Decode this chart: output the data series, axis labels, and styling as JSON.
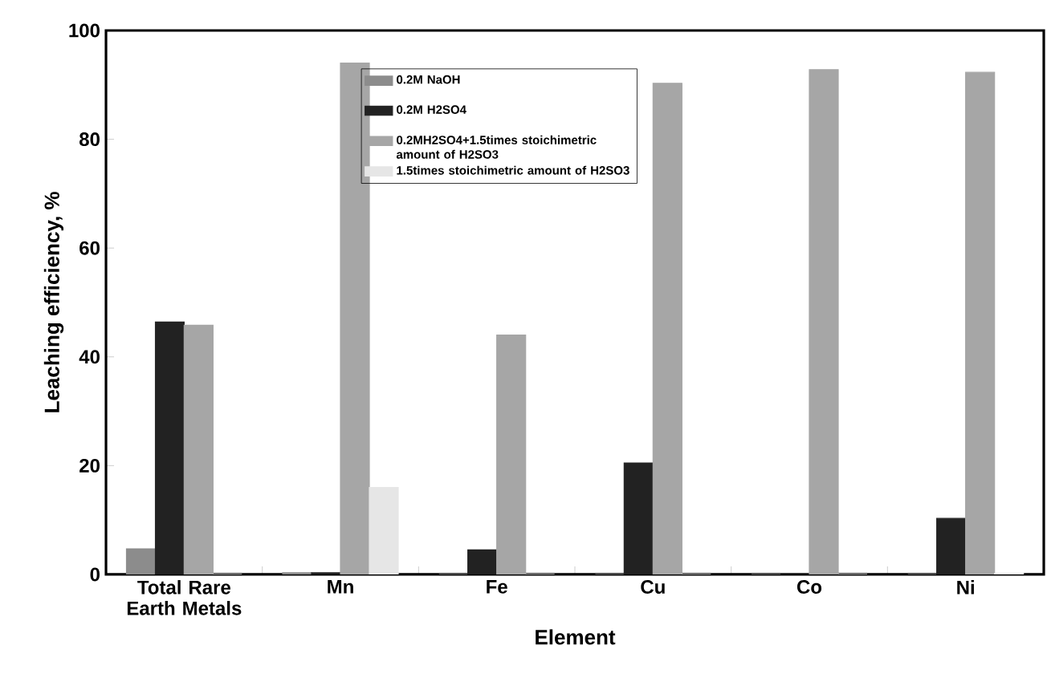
{
  "chart_data": {
    "type": "bar",
    "xlabel": "Element",
    "ylabel": "Leaching efficiency, %",
    "categories": [
      "Total Rare Earth Metals",
      "Mn",
      "Fe",
      "Cu",
      "Co",
      "Ni"
    ],
    "series": [
      {
        "name": "0.2M NaOH",
        "color": "#8c8c8c",
        "values": [
          4.7,
          0.3,
          0,
          0,
          0,
          0
        ]
      },
      {
        "name": "0.2M H2SO4",
        "color": "#222222",
        "values": [
          46.4,
          0.3,
          4.5,
          20.5,
          0,
          10.3
        ]
      },
      {
        "name": "0.2MH2SO4+1.5times stoichimetric amount of H2SO3",
        "color": "#a6a6a6",
        "values": [
          45.8,
          94,
          44,
          90.3,
          92.8,
          92.3
        ]
      },
      {
        "name": "1.5times stoichimetric amount of H2SO3",
        "color": "#e6e6e6",
        "values": [
          0,
          16,
          0,
          0,
          0,
          0.2
        ]
      }
    ],
    "ylim": [
      0,
      100
    ],
    "yticks": [
      0,
      20,
      40,
      60,
      80,
      100
    ],
    "grid": false,
    "legend": "top"
  }
}
